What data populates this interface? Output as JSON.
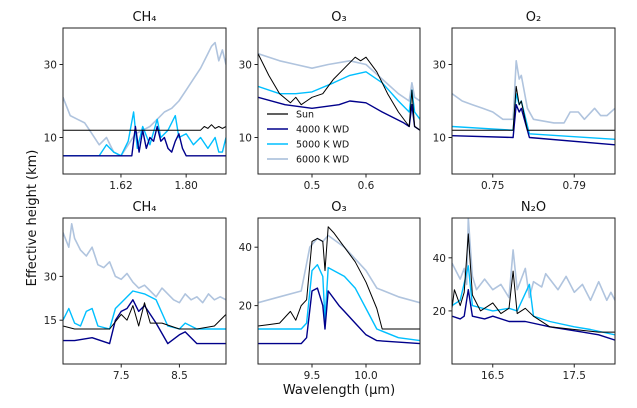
{
  "figure": {
    "ylabel": "Effective height (km)",
    "xlabel": "Wavelength (μm)"
  },
  "legend": {
    "placement": "lower-left of O₃ (visible) panel",
    "entries": [
      "Sun",
      "4000 K WD",
      "5000 K WD",
      "6000 K WD"
    ]
  },
  "colors": {
    "Sun": "#000000",
    "4000 K WD": "#00008b",
    "5000 K WD": "#00bfff",
    "6000 K WD": "#b0c4de"
  },
  "chart_data": [
    {
      "type": "line",
      "title": "CH₄",
      "xlim": [
        1.46,
        1.91
      ],
      "ylim": [
        0,
        40
      ],
      "xticks": [
        1.62,
        1.8
      ],
      "xtick_labels": [
        "1.62",
        "1.80"
      ],
      "yticks": [
        10,
        30
      ],
      "ytick_labels": [
        "10",
        "30"
      ],
      "series": [
        {
          "name": "Sun",
          "x": [
            1.46,
            1.84,
            1.85,
            1.86,
            1.87,
            1.88,
            1.89,
            1.9,
            1.91
          ],
          "y": [
            12,
            12,
            13,
            12.5,
            13.5,
            12.5,
            13,
            12.5,
            13
          ]
        },
        {
          "name": "4000 K WD",
          "x": [
            1.46,
            1.65,
            1.66,
            1.67,
            1.68,
            1.69,
            1.7,
            1.71,
            1.72,
            1.73,
            1.74,
            1.75,
            1.76,
            1.77,
            1.78,
            1.79,
            1.8,
            1.91
          ],
          "y": [
            5,
            5,
            13,
            6,
            12,
            7,
            10,
            9,
            13,
            9,
            10,
            7,
            6,
            9,
            11,
            7,
            5,
            5
          ]
        },
        {
          "name": "5000 K WD",
          "x": [
            1.46,
            1.56,
            1.58,
            1.6,
            1.62,
            1.64,
            1.655,
            1.665,
            1.68,
            1.7,
            1.72,
            1.73,
            1.75,
            1.77,
            1.78,
            1.8,
            1.82,
            1.84,
            1.86,
            1.88,
            1.89,
            1.9,
            1.91
          ],
          "y": [
            5,
            5,
            8,
            6,
            5,
            9,
            17,
            7,
            13,
            8,
            15,
            10,
            12,
            16,
            10,
            11,
            8,
            10,
            7,
            10,
            6,
            6,
            10
          ]
        },
        {
          "name": "6000 K WD",
          "x": [
            1.46,
            1.48,
            1.5,
            1.52,
            1.54,
            1.56,
            1.58,
            1.6,
            1.62,
            1.64,
            1.66,
            1.68,
            1.7,
            1.72,
            1.74,
            1.76,
            1.78,
            1.8,
            1.82,
            1.84,
            1.86,
            1.87,
            1.88,
            1.89,
            1.9,
            1.91
          ],
          "y": [
            21,
            16,
            15,
            14,
            11,
            8,
            10,
            6,
            5,
            8,
            11,
            12,
            13,
            15,
            17,
            18,
            20,
            23,
            26,
            29,
            33,
            35,
            36,
            31,
            34,
            30
          ]
        }
      ]
    },
    {
      "type": "line",
      "title": "O₃",
      "xlim": [
        0.4,
        0.7
      ],
      "ylim": [
        0,
        40
      ],
      "xticks": [
        0.5,
        0.6
      ],
      "xtick_labels": [
        "0.5",
        "0.6"
      ],
      "yticks": [
        10,
        30
      ],
      "ytick_labels": [
        "10",
        "30"
      ],
      "series": [
        {
          "name": "Sun",
          "x": [
            0.4,
            0.42,
            0.44,
            0.46,
            0.47,
            0.48,
            0.49,
            0.5,
            0.52,
            0.54,
            0.56,
            0.58,
            0.59,
            0.6,
            0.62,
            0.64,
            0.66,
            0.68,
            0.685,
            0.69,
            0.7
          ],
          "y": [
            33,
            27,
            22,
            19.5,
            21,
            19,
            20,
            21,
            22,
            26,
            29,
            32,
            31,
            32,
            28,
            22,
            17,
            13,
            23,
            13,
            12
          ]
        },
        {
          "name": "4000 K WD",
          "x": [
            0.4,
            0.45,
            0.5,
            0.55,
            0.57,
            0.6,
            0.63,
            0.67,
            0.68,
            0.685,
            0.69,
            0.7
          ],
          "y": [
            21,
            19,
            18,
            19,
            20,
            19.5,
            17,
            14,
            13,
            19,
            13,
            12
          ]
        },
        {
          "name": "5000 K WD",
          "x": [
            0.4,
            0.44,
            0.47,
            0.5,
            0.54,
            0.57,
            0.6,
            0.63,
            0.66,
            0.68,
            0.685,
            0.69,
            0.7
          ],
          "y": [
            24,
            22,
            22,
            22.5,
            25,
            27,
            28,
            25,
            20,
            17,
            23,
            17,
            15
          ]
        },
        {
          "name": "6000 K WD",
          "x": [
            0.4,
            0.44,
            0.47,
            0.5,
            0.53,
            0.57,
            0.6,
            0.63,
            0.66,
            0.68,
            0.685,
            0.69,
            0.7
          ],
          "y": [
            33,
            31,
            30,
            29,
            30,
            31,
            30,
            26,
            22,
            20,
            25,
            21,
            20
          ]
        }
      ]
    },
    {
      "type": "line",
      "title": "O₂",
      "xlim": [
        0.73,
        0.81
      ],
      "ylim": [
        0,
        40
      ],
      "xticks": [
        0.75,
        0.79
      ],
      "xtick_labels": [
        "0.75",
        "0.79"
      ],
      "yticks": [
        10,
        30
      ],
      "ytick_labels": [
        "10",
        "30"
      ],
      "series": [
        {
          "name": "Sun",
          "x": [
            0.73,
            0.76,
            0.7615,
            0.763,
            0.764,
            0.767,
            0.81
          ],
          "y": [
            12,
            12,
            24,
            19,
            20,
            12,
            12
          ]
        },
        {
          "name": "4000 K WD",
          "x": [
            0.73,
            0.76,
            0.7615,
            0.763,
            0.764,
            0.768,
            0.81
          ],
          "y": [
            10.5,
            10,
            19,
            17,
            18,
            10,
            8
          ]
        },
        {
          "name": "5000 K WD",
          "x": [
            0.73,
            0.76,
            0.7615,
            0.763,
            0.764,
            0.768,
            0.81
          ],
          "y": [
            13,
            12,
            22,
            19,
            20,
            11,
            9.5
          ]
        },
        {
          "name": "6000 K WD",
          "x": [
            0.73,
            0.735,
            0.74,
            0.745,
            0.75,
            0.755,
            0.76,
            0.7615,
            0.763,
            0.764,
            0.767,
            0.77,
            0.78,
            0.785,
            0.788,
            0.792,
            0.795,
            0.8,
            0.803,
            0.806,
            0.81
          ],
          "y": [
            22,
            20,
            19,
            18,
            17,
            15,
            15,
            31,
            26,
            27,
            18,
            15,
            14,
            14,
            17,
            17,
            15,
            18,
            16,
            16,
            18
          ]
        }
      ]
    },
    {
      "type": "line",
      "title": "CH₄",
      "xlim": [
        6.5,
        9.3
      ],
      "ylim": [
        0,
        50
      ],
      "xticks": [
        7.5,
        8.5
      ],
      "xtick_labels": [
        "7.5",
        "8.5"
      ],
      "yticks": [
        15,
        30
      ],
      "ytick_labels": [
        "15",
        "30"
      ],
      "series": [
        {
          "name": "Sun",
          "x": [
            6.5,
            6.7,
            7.0,
            7.3,
            7.5,
            7.6,
            7.7,
            7.8,
            7.9,
            8.0,
            8.2,
            8.5,
            8.8,
            9.1,
            9.3
          ],
          "y": [
            13,
            12,
            12,
            12,
            17,
            15,
            20,
            13,
            21,
            14,
            14,
            12,
            12,
            13,
            17
          ]
        },
        {
          "name": "4000 K WD",
          "x": [
            6.5,
            6.7,
            7.0,
            7.3,
            7.4,
            7.5,
            7.6,
            7.7,
            7.8,
            7.9,
            8.1,
            8.3,
            8.5,
            8.6,
            8.8,
            9.3
          ],
          "y": [
            8,
            8,
            9,
            7,
            15,
            18,
            19,
            22,
            18,
            20,
            14,
            7,
            10,
            11,
            7,
            7
          ]
        },
        {
          "name": "5000 K WD",
          "x": [
            6.5,
            6.6,
            6.7,
            6.8,
            6.9,
            7.0,
            7.1,
            7.3,
            7.4,
            7.5,
            7.7,
            7.9,
            8.1,
            8.3,
            8.5,
            8.6,
            8.8,
            9.3
          ],
          "y": [
            15,
            19,
            14,
            13,
            18,
            19,
            13,
            12,
            19,
            21,
            25,
            24,
            22,
            13,
            12,
            14,
            12,
            12
          ]
        },
        {
          "name": "6000 K WD",
          "x": [
            6.5,
            6.6,
            6.65,
            6.7,
            6.8,
            6.9,
            7.0,
            7.1,
            7.2,
            7.3,
            7.4,
            7.5,
            7.6,
            7.7,
            7.8,
            7.9,
            8.0,
            8.1,
            8.2,
            8.3,
            8.4,
            8.5,
            8.6,
            8.7,
            8.8,
            8.9,
            9.0,
            9.1,
            9.2,
            9.3
          ],
          "y": [
            45,
            40,
            48,
            43,
            39,
            37,
            40,
            34,
            33,
            35,
            30,
            29,
            31,
            28,
            26,
            27,
            25,
            23,
            26,
            24,
            22,
            21,
            24,
            22,
            23,
            21,
            24,
            22,
            23,
            22
          ]
        }
      ]
    },
    {
      "type": "line",
      "title": "O₃",
      "xlim": [
        9.0,
        10.5
      ],
      "ylim": [
        0,
        50
      ],
      "xticks": [
        9.5,
        10.0
      ],
      "xtick_labels": [
        "9.5",
        "10.0"
      ],
      "yticks": [
        20,
        40
      ],
      "ytick_labels": [
        "20",
        "40"
      ],
      "series": [
        {
          "name": "Sun",
          "x": [
            9.0,
            9.1,
            9.2,
            9.3,
            9.35,
            9.4,
            9.45,
            9.5,
            9.55,
            9.6,
            9.62,
            9.65,
            9.7,
            9.8,
            9.9,
            10.0,
            10.1,
            10.15,
            10.5
          ],
          "y": [
            13,
            13.5,
            14,
            18,
            15,
            20,
            22,
            42,
            43,
            42,
            32,
            47,
            45,
            40,
            35,
            28,
            19,
            12,
            12
          ]
        },
        {
          "name": "4000 K WD",
          "x": [
            9.0,
            9.4,
            9.45,
            9.5,
            9.55,
            9.6,
            9.62,
            9.65,
            9.75,
            9.8,
            9.9,
            10.0,
            10.1,
            10.5
          ],
          "y": [
            7,
            7,
            9,
            25,
            26,
            20,
            12,
            25,
            20,
            18,
            14,
            10,
            8,
            7
          ]
        },
        {
          "name": "5000 K WD",
          "x": [
            9.0,
            9.4,
            9.45,
            9.5,
            9.55,
            9.6,
            9.62,
            9.65,
            9.8,
            9.9,
            10.0,
            10.1,
            10.3,
            10.5
          ],
          "y": [
            12,
            12,
            14,
            32,
            34,
            30,
            15,
            33,
            30,
            26,
            19,
            12,
            9,
            8
          ]
        },
        {
          "name": "6000 K WD",
          "x": [
            9.0,
            9.2,
            9.4,
            9.48,
            9.55,
            9.6,
            9.65,
            9.8,
            9.9,
            10.0,
            10.1,
            10.3,
            10.5
          ],
          "y": [
            21,
            23,
            25,
            40,
            43,
            42,
            44,
            40,
            36,
            32,
            26,
            23,
            21
          ]
        }
      ]
    },
    {
      "type": "line",
      "title": "N₂O",
      "xlim": [
        16.0,
        18.0
      ],
      "ylim": [
        0,
        55
      ],
      "xticks": [
        16.5,
        17.5
      ],
      "xtick_labels": [
        "16.5",
        "17.5"
      ],
      "yticks": [
        20,
        40
      ],
      "ytick_labels": [
        "20",
        "40"
      ],
      "series": [
        {
          "name": "Sun",
          "x": [
            16.0,
            16.03,
            16.1,
            16.15,
            16.2,
            16.25,
            16.35,
            16.5,
            16.6,
            16.7,
            16.75,
            16.8,
            16.9,
            17.0,
            17.2,
            17.5,
            17.8,
            18.0
          ],
          "y": [
            21,
            28,
            22,
            27,
            49,
            26,
            20,
            23,
            19,
            21,
            35,
            19,
            21,
            18,
            14,
            13,
            12,
            12
          ]
        },
        {
          "name": "4000 K WD",
          "x": [
            16.0,
            16.1,
            16.15,
            16.2,
            16.25,
            16.4,
            16.5,
            16.7,
            16.9,
            17.2,
            17.6,
            17.8,
            18.0
          ],
          "y": [
            18,
            17,
            18,
            28,
            18,
            17,
            18,
            16,
            16,
            14,
            12,
            11,
            9
          ]
        },
        {
          "name": "5000 K WD",
          "x": [
            16.0,
            16.1,
            16.2,
            16.25,
            16.5,
            16.7,
            16.8,
            16.95,
            17.0,
            17.2,
            17.5,
            17.7,
            18.0
          ],
          "y": [
            22,
            24,
            37,
            22,
            20,
            21,
            20,
            30,
            18,
            16,
            14,
            13,
            11
          ]
        },
        {
          "name": "6000 K WD",
          "x": [
            16.0,
            16.1,
            16.15,
            16.18,
            16.2,
            16.25,
            16.3,
            16.4,
            16.5,
            16.6,
            16.7,
            16.75,
            16.8,
            16.9,
            16.95,
            17.0,
            17.1,
            17.15,
            17.3,
            17.4,
            17.5,
            17.6,
            17.7,
            17.8,
            17.9,
            17.95,
            18.0
          ],
          "y": [
            38,
            32,
            36,
            30,
            55,
            33,
            28,
            32,
            28,
            30,
            25,
            43,
            28,
            36,
            25,
            31,
            29,
            34,
            28,
            33,
            27,
            30,
            24,
            31,
            24,
            27,
            24
          ]
        }
      ]
    }
  ]
}
